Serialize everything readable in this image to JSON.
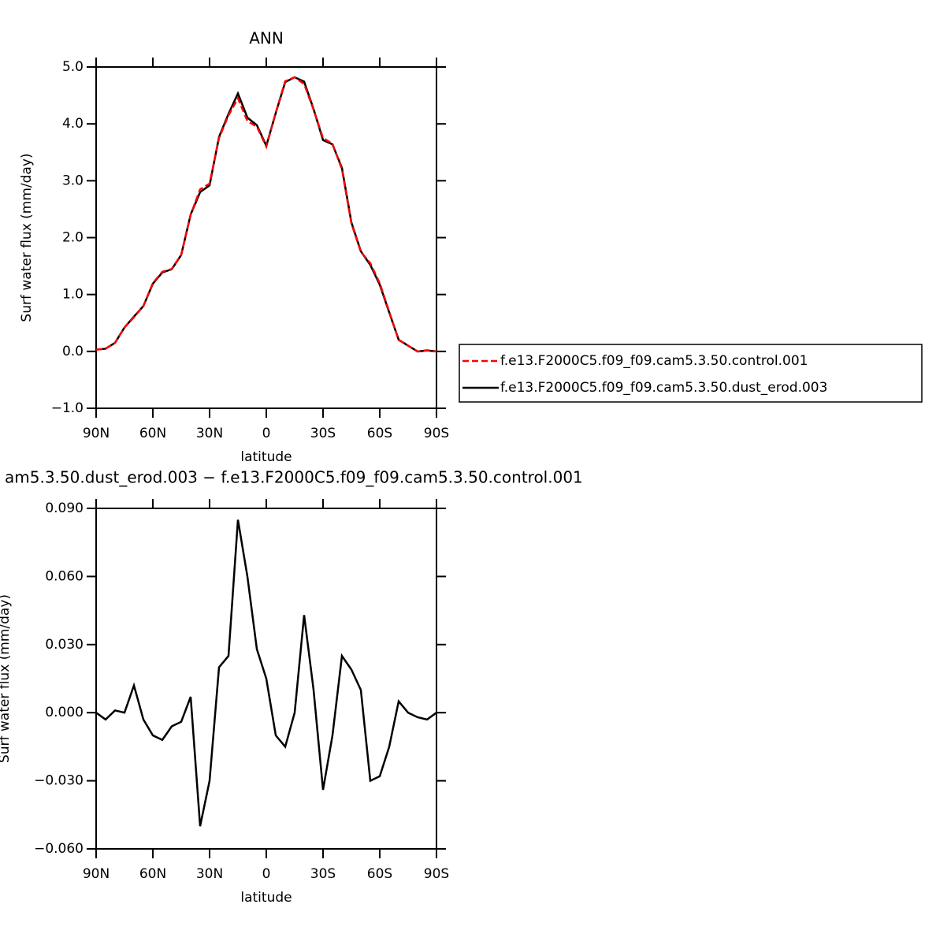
{
  "chart_data": [
    {
      "type": "line",
      "title": "ANN",
      "x_label": "latitude",
      "y_label": "Surf water flux (mm/day)",
      "x": [
        90,
        85,
        80,
        75,
        70,
        65,
        60,
        55,
        50,
        45,
        40,
        35,
        30,
        25,
        20,
        15,
        10,
        5,
        0,
        -5,
        -10,
        -15,
        -20,
        -25,
        -30,
        -35,
        -40,
        -45,
        -50,
        -55,
        -60,
        -65,
        -70,
        -75,
        -80,
        -85,
        -90
      ],
      "xlim": [
        90,
        -90
      ],
      "xticks": [
        {
          "value": 90,
          "label": "90N"
        },
        {
          "value": 60,
          "label": "60N"
        },
        {
          "value": 30,
          "label": "30N"
        },
        0,
        {
          "value": -30,
          "label": "30S"
        },
        {
          "value": -60,
          "label": "60S"
        },
        {
          "value": -90,
          "label": "90S"
        }
      ],
      "ylim": [
        -1,
        5
      ],
      "yticks": [
        {
          "value": -1,
          "label": "−1.0"
        },
        {
          "value": 0,
          "label": "0.0"
        },
        {
          "value": 1,
          "label": "1.0"
        },
        {
          "value": 2,
          "label": "2.0"
        },
        {
          "value": 3,
          "label": "3.0"
        },
        {
          "value": 4,
          "label": "4.0"
        },
        {
          "value": 5,
          "label": "5.0"
        }
      ],
      "legend": "right",
      "series": [
        {
          "name": "f.e13.F2000C5.f09_f09.cam5.3.50.control.001",
          "color": "#ff0000",
          "line_style": "dashed",
          "values": [
            0.03,
            0.05,
            0.15,
            0.42,
            0.6,
            0.8,
            1.2,
            1.4,
            1.45,
            1.7,
            2.4,
            2.85,
            2.95,
            3.75,
            4.15,
            4.45,
            4.05,
            3.95,
            3.6,
            4.2,
            4.75,
            4.82,
            4.7,
            4.25,
            3.75,
            3.65,
            3.2,
            2.25,
            1.75,
            1.55,
            1.2,
            0.7,
            0.2,
            0.1,
            0.0,
            0.02,
            0.0
          ]
        },
        {
          "name": "f.e13.F2000C5.f09_f09.cam5.3.50.dust_erod.003",
          "color": "#000000",
          "line_style": "solid",
          "values": [
            0.03,
            0.047,
            0.151,
            0.42,
            0.612,
            0.797,
            1.19,
            1.388,
            1.444,
            1.696,
            2.407,
            2.8,
            2.92,
            3.77,
            4.175,
            4.535,
            4.11,
            3.978,
            3.615,
            4.19,
            4.735,
            4.82,
            4.743,
            4.26,
            3.716,
            3.64,
            3.225,
            2.269,
            1.76,
            1.52,
            1.172,
            0.685,
            0.205,
            0.1,
            -0.002,
            0.017,
            0.0
          ]
        }
      ]
    },
    {
      "type": "line",
      "title": "am5.3.50.dust_erod.003 − f.e13.F2000C5.f09_f09.cam5.3.50.control.001",
      "x_label": "latitude",
      "y_label": "Surf water flux (mm/day)",
      "x": [
        90,
        85,
        80,
        75,
        70,
        65,
        60,
        55,
        50,
        45,
        40,
        35,
        30,
        25,
        20,
        15,
        10,
        5,
        0,
        -5,
        -10,
        -15,
        -20,
        -25,
        -30,
        -35,
        -40,
        -45,
        -50,
        -55,
        -60,
        -65,
        -70,
        -75,
        -80,
        -85,
        -90
      ],
      "xlim": [
        90,
        -90
      ],
      "xticks": [
        {
          "value": 90,
          "label": "90N"
        },
        {
          "value": 60,
          "label": "60N"
        },
        {
          "value": 30,
          "label": "30N"
        },
        0,
        {
          "value": -30,
          "label": "30S"
        },
        {
          "value": -60,
          "label": "60S"
        },
        {
          "value": -90,
          "label": "90S"
        }
      ],
      "ylim": [
        -0.06,
        0.09
      ],
      "yticks": [
        {
          "value": -0.06,
          "label": "−0.060"
        },
        {
          "value": -0.03,
          "label": "−0.030"
        },
        {
          "value": 0,
          "label": "0.000"
        },
        {
          "value": 0.03,
          "label": "0.030"
        },
        {
          "value": 0.06,
          "label": "0.060"
        },
        {
          "value": 0.09,
          "label": "0.090"
        }
      ],
      "series": [
        {
          "color": "#000000",
          "line_style": "solid",
          "values": [
            0,
            -0.003,
            0.001,
            0,
            0.012,
            -0.003,
            -0.01,
            -0.012,
            -0.006,
            -0.004,
            0.007,
            -0.05,
            -0.03,
            0.02,
            0.025,
            0.085,
            0.06,
            0.028,
            0.015,
            -0.01,
            -0.015,
            0,
            0.043,
            0.01,
            -0.034,
            -0.01,
            0.025,
            0.019,
            0.01,
            -0.03,
            -0.028,
            -0.015,
            0.005,
            0,
            -0.002,
            -0.003,
            0
          ]
        }
      ]
    }
  ]
}
